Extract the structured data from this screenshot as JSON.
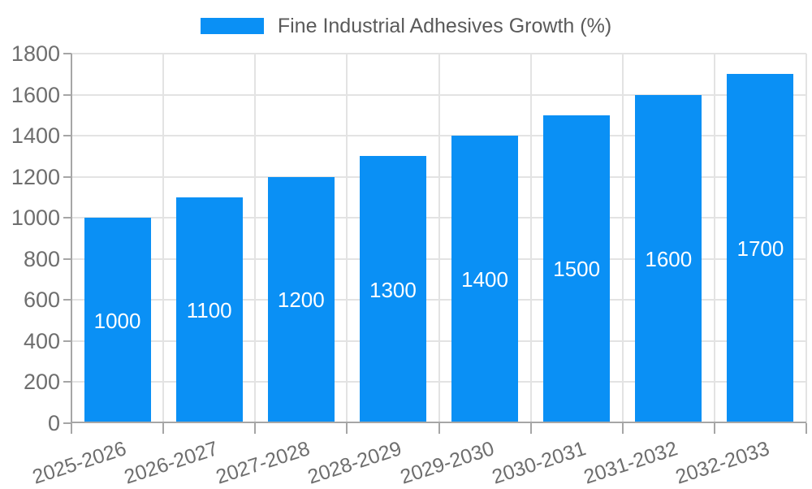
{
  "chart_data": {
    "type": "bar",
    "title": "Fine Industrial Adhesives Growth (%)",
    "categories": [
      "2025-2026",
      "2026-2027",
      "2027-2028",
      "2028-2029",
      "2029-2030",
      "2030-2031",
      "2031-2032",
      "2032-2033"
    ],
    "values": [
      1000,
      1100,
      1200,
      1300,
      1400,
      1500,
      1600,
      1700
    ],
    "bar_value_labels": [
      "1000",
      "1100",
      "1200",
      "1300",
      "1400",
      "1500",
      "1600",
      "1700"
    ],
    "xlabel": "",
    "ylabel": "",
    "ylim": [
      0,
      1800
    ],
    "ytick_interval": 200,
    "ytick_labels": [
      "0",
      "200",
      "400",
      "600",
      "800",
      "1000",
      "1200",
      "1400",
      "1600",
      "1800"
    ],
    "grid": true,
    "legend_position": "top-center",
    "x_tick_label_rotation_deg": -18,
    "colors": {
      "bar": "#0A90F5",
      "bar_value_label": "#FFFFFF",
      "grid_line": "#E3E3E3",
      "axis_line": "#A6A6A6",
      "tick_label": "#6E6E6E",
      "legend_text": "#5A5A5A",
      "background": "#FFFFFF"
    }
  }
}
